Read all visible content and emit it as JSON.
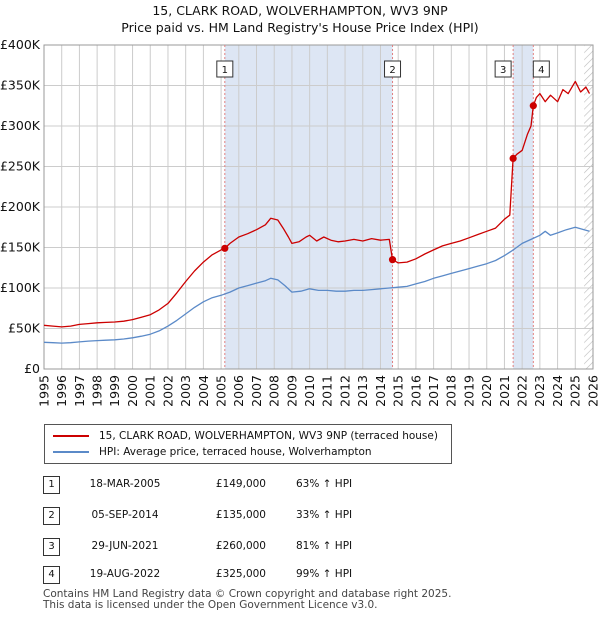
{
  "title": "15, CLARK ROAD, WOLVERHAMPTON, WV3 9NP",
  "subtitle": "Price paid vs. HM Land Registry's House Price Index (HPI)",
  "colors": {
    "property": "#cc0000",
    "hpi": "#5b8ac8",
    "shade": "#dde6f4",
    "grid": "#cccccc",
    "marker_line": "#e08080"
  },
  "chart_data": {
    "type": "line",
    "title": "15, CLARK ROAD, WOLVERHAMPTON, WV3 9NP",
    "subtitle": "Price paid vs. HM Land Registry's House Price Index (HPI)",
    "xlabel": "",
    "ylabel": "",
    "xlim": [
      1995,
      2026
    ],
    "ylim": [
      0,
      400000
    ],
    "x_ticks": [
      "1995",
      "1996",
      "1997",
      "1998",
      "1999",
      "2000",
      "2001",
      "2002",
      "2003",
      "2004",
      "2005",
      "2006",
      "2007",
      "2008",
      "2009",
      "2010",
      "2011",
      "2012",
      "2013",
      "2014",
      "2015",
      "2016",
      "2017",
      "2018",
      "2019",
      "2020",
      "2021",
      "2022",
      "2023",
      "2024",
      "2025",
      "2026"
    ],
    "y_ticks": [
      {
        "value": 0,
        "label": "£0"
      },
      {
        "value": 50000,
        "label": "£50K"
      },
      {
        "value": 100000,
        "label": "£100K"
      },
      {
        "value": 150000,
        "label": "£150K"
      },
      {
        "value": 200000,
        "label": "£200K"
      },
      {
        "value": 250000,
        "label": "£250K"
      },
      {
        "value": 300000,
        "label": "£300K"
      },
      {
        "value": 350000,
        "label": "£350K"
      },
      {
        "value": 400000,
        "label": "£400K"
      }
    ],
    "shaded_ranges": [
      [
        2005.21,
        2014.68
      ],
      [
        2021.49,
        2022.63
      ]
    ],
    "hatched_after": 2025.5,
    "series": [
      {
        "name": "15, CLARK ROAD, WOLVERHAMPTON, WV3 9NP (terraced house)",
        "color": "#cc0000",
        "points": [
          [
            1995.0,
            54000
          ],
          [
            1995.5,
            53000
          ],
          [
            1996.0,
            52000
          ],
          [
            1996.5,
            53000
          ],
          [
            1997.0,
            55000
          ],
          [
            1997.5,
            56000
          ],
          [
            1998.0,
            57000
          ],
          [
            1998.5,
            57500
          ],
          [
            1999.0,
            58000
          ],
          [
            1999.5,
            59000
          ],
          [
            2000.0,
            61000
          ],
          [
            2000.5,
            64000
          ],
          [
            2001.0,
            67000
          ],
          [
            2001.5,
            73000
          ],
          [
            2002.0,
            81000
          ],
          [
            2002.5,
            94000
          ],
          [
            2003.0,
            108000
          ],
          [
            2003.5,
            121000
          ],
          [
            2004.0,
            132000
          ],
          [
            2004.5,
            141000
          ],
          [
            2005.0,
            147000
          ],
          [
            2005.21,
            149000
          ],
          [
            2005.5,
            155000
          ],
          [
            2006.0,
            163000
          ],
          [
            2006.5,
            167000
          ],
          [
            2007.0,
            172000
          ],
          [
            2007.5,
            178000
          ],
          [
            2007.8,
            186000
          ],
          [
            2008.2,
            184000
          ],
          [
            2008.5,
            174000
          ],
          [
            2008.8,
            163000
          ],
          [
            2009.0,
            155000
          ],
          [
            2009.4,
            157000
          ],
          [
            2009.8,
            163000
          ],
          [
            2010.0,
            165000
          ],
          [
            2010.4,
            158000
          ],
          [
            2010.8,
            163000
          ],
          [
            2011.2,
            159000
          ],
          [
            2011.6,
            157000
          ],
          [
            2012.0,
            158000
          ],
          [
            2012.5,
            160000
          ],
          [
            2013.0,
            158000
          ],
          [
            2013.5,
            161000
          ],
          [
            2014.0,
            159000
          ],
          [
            2014.5,
            160000
          ],
          [
            2014.68,
            135000
          ],
          [
            2015.0,
            131000
          ],
          [
            2015.5,
            132000
          ],
          [
            2016.0,
            136000
          ],
          [
            2016.5,
            142000
          ],
          [
            2017.0,
            147000
          ],
          [
            2017.5,
            152000
          ],
          [
            2018.0,
            155000
          ],
          [
            2018.5,
            158000
          ],
          [
            2019.0,
            162000
          ],
          [
            2019.5,
            166000
          ],
          [
            2020.0,
            170000
          ],
          [
            2020.5,
            174000
          ],
          [
            2021.0,
            185000
          ],
          [
            2021.3,
            190000
          ],
          [
            2021.49,
            260000
          ],
          [
            2021.7,
            265000
          ],
          [
            2022.0,
            270000
          ],
          [
            2022.3,
            290000
          ],
          [
            2022.5,
            300000
          ],
          [
            2022.63,
            325000
          ],
          [
            2022.8,
            335000
          ],
          [
            2023.0,
            340000
          ],
          [
            2023.3,
            330000
          ],
          [
            2023.6,
            338000
          ],
          [
            2024.0,
            330000
          ],
          [
            2024.3,
            345000
          ],
          [
            2024.6,
            340000
          ],
          [
            2025.0,
            355000
          ],
          [
            2025.3,
            342000
          ],
          [
            2025.6,
            348000
          ],
          [
            2025.8,
            340000
          ]
        ]
      },
      {
        "name": "HPI: Average price, terraced house, Wolverhampton",
        "color": "#5b8ac8",
        "points": [
          [
            1995.0,
            33000
          ],
          [
            1995.5,
            32500
          ],
          [
            1996.0,
            32000
          ],
          [
            1996.5,
            32500
          ],
          [
            1997.0,
            33500
          ],
          [
            1997.5,
            34500
          ],
          [
            1998.0,
            35000
          ],
          [
            1998.5,
            35500
          ],
          [
            1999.0,
            36000
          ],
          [
            1999.5,
            37000
          ],
          [
            2000.0,
            38500
          ],
          [
            2000.5,
            40500
          ],
          [
            2001.0,
            43000
          ],
          [
            2001.5,
            47000
          ],
          [
            2002.0,
            53000
          ],
          [
            2002.5,
            60000
          ],
          [
            2003.0,
            68000
          ],
          [
            2003.5,
            76000
          ],
          [
            2004.0,
            83000
          ],
          [
            2004.5,
            88000
          ],
          [
            2005.0,
            91000
          ],
          [
            2005.5,
            95000
          ],
          [
            2006.0,
            100000
          ],
          [
            2006.5,
            103000
          ],
          [
            2007.0,
            106000
          ],
          [
            2007.5,
            109000
          ],
          [
            2007.8,
            112000
          ],
          [
            2008.2,
            110000
          ],
          [
            2008.6,
            103000
          ],
          [
            2009.0,
            95000
          ],
          [
            2009.5,
            96000
          ],
          [
            2010.0,
            99000
          ],
          [
            2010.5,
            97000
          ],
          [
            2011.0,
            97000
          ],
          [
            2011.5,
            96000
          ],
          [
            2012.0,
            96000
          ],
          [
            2012.5,
            97000
          ],
          [
            2013.0,
            97000
          ],
          [
            2013.5,
            98000
          ],
          [
            2014.0,
            99000
          ],
          [
            2014.5,
            100000
          ],
          [
            2015.0,
            101000
          ],
          [
            2015.5,
            102000
          ],
          [
            2016.0,
            105000
          ],
          [
            2016.5,
            108000
          ],
          [
            2017.0,
            112000
          ],
          [
            2017.5,
            115000
          ],
          [
            2018.0,
            118000
          ],
          [
            2018.5,
            121000
          ],
          [
            2019.0,
            124000
          ],
          [
            2019.5,
            127000
          ],
          [
            2020.0,
            130000
          ],
          [
            2020.5,
            134000
          ],
          [
            2021.0,
            140000
          ],
          [
            2021.5,
            147000
          ],
          [
            2022.0,
            155000
          ],
          [
            2022.5,
            160000
          ],
          [
            2023.0,
            165000
          ],
          [
            2023.3,
            170000
          ],
          [
            2023.6,
            165000
          ],
          [
            2024.0,
            168000
          ],
          [
            2024.5,
            172000
          ],
          [
            2025.0,
            175000
          ],
          [
            2025.5,
            172000
          ],
          [
            2025.8,
            170000
          ]
        ]
      }
    ],
    "markers": [
      {
        "id": "1",
        "x": 2005.21,
        "y": 149000
      },
      {
        "id": "2",
        "x": 2014.68,
        "y": 135000
      },
      {
        "id": "3",
        "x": 2021.49,
        "y": 260000
      },
      {
        "id": "4",
        "x": 2022.63,
        "y": 325000
      }
    ]
  },
  "legend": {
    "property": "15, CLARK ROAD, WOLVERHAMPTON, WV3 9NP (terraced house)",
    "hpi": "HPI: Average price, terraced house, Wolverhampton"
  },
  "transactions": [
    {
      "num": "1",
      "date": "18-MAR-2005",
      "price": "£149,000",
      "hpi": "63% ↑ HPI"
    },
    {
      "num": "2",
      "date": "05-SEP-2014",
      "price": "£135,000",
      "hpi": "33% ↑ HPI"
    },
    {
      "num": "3",
      "date": "29-JUN-2021",
      "price": "£260,000",
      "hpi": "81% ↑ HPI"
    },
    {
      "num": "4",
      "date": "19-AUG-2022",
      "price": "£325,000",
      "hpi": "99% ↑ HPI"
    }
  ],
  "footer": {
    "line1": "Contains HM Land Registry data © Crown copyright and database right 2025.",
    "line2": "This data is licensed under the Open Government Licence v3.0."
  }
}
